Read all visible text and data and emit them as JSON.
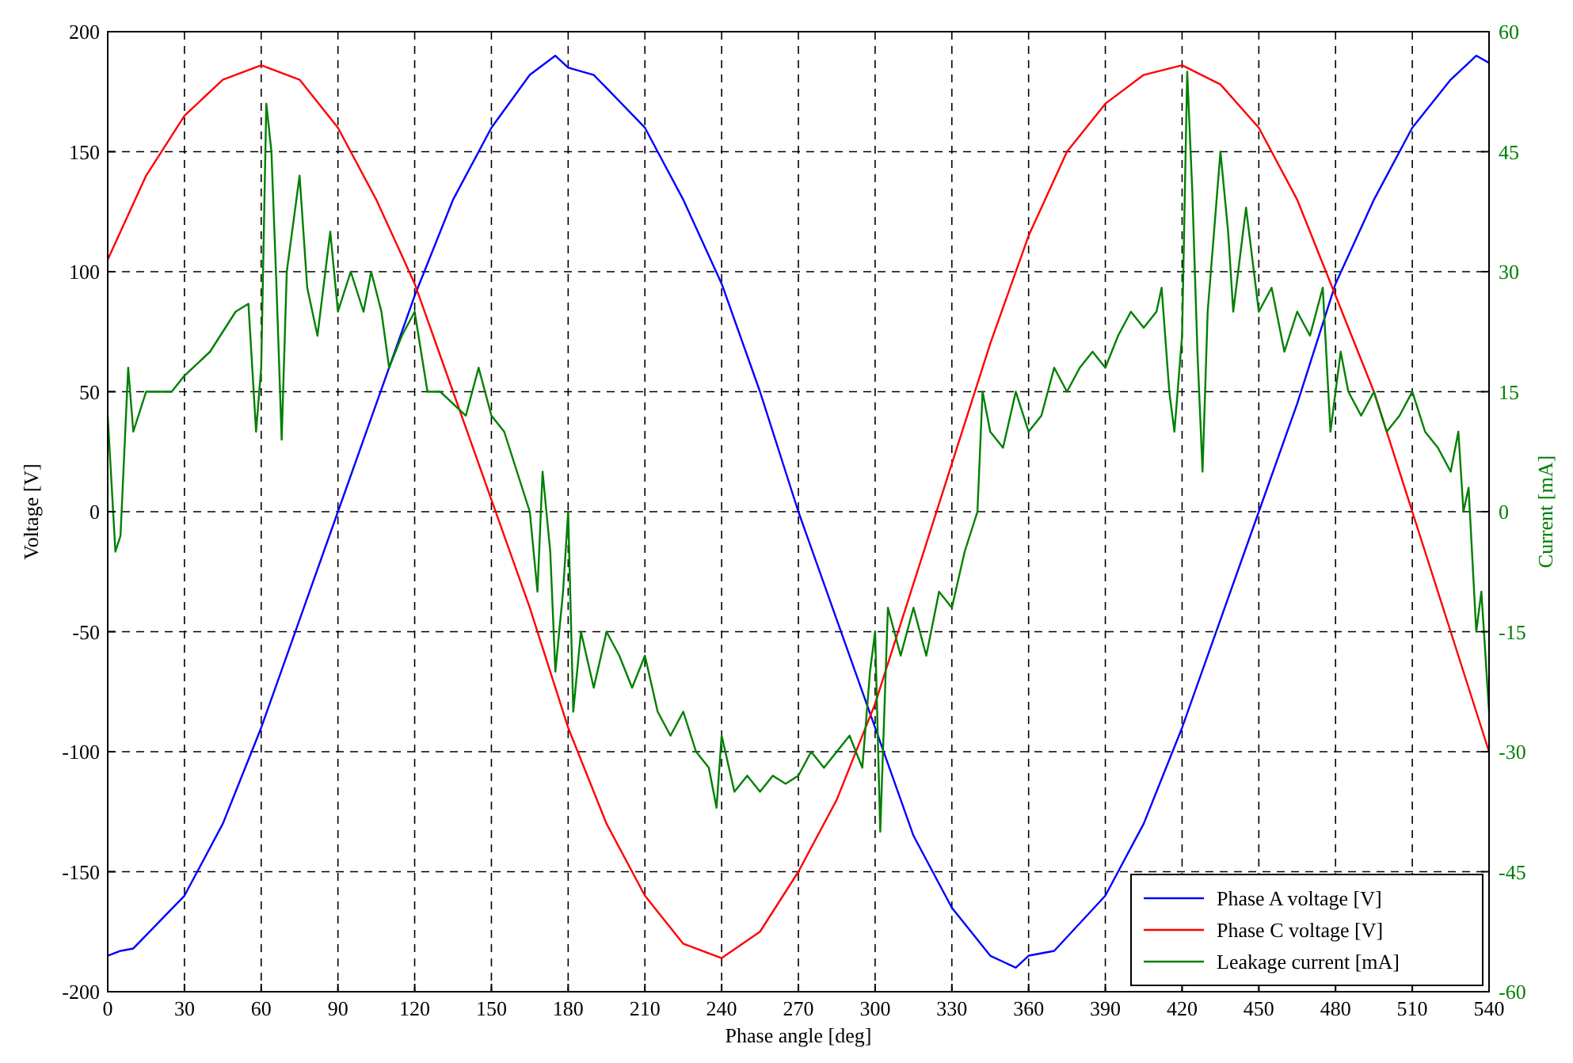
{
  "chart_data": {
    "type": "line",
    "xlabel": "Phase angle [deg]",
    "ylabel": "Voltage [V]",
    "y2label": "Current [mA]",
    "xlim": [
      0,
      540
    ],
    "xticks": [
      0,
      30,
      60,
      90,
      120,
      150,
      180,
      210,
      240,
      270,
      300,
      330,
      360,
      390,
      420,
      450,
      480,
      510,
      540
    ],
    "ylim": [
      -200,
      200
    ],
    "yticks": [
      -200,
      -150,
      -100,
      -50,
      0,
      50,
      100,
      150,
      200
    ],
    "y2lim": [
      -60,
      60
    ],
    "y2ticks": [
      -60,
      -45,
      -30,
      -15,
      0,
      15,
      30,
      45,
      60
    ],
    "grid": true,
    "legend": "bottom right",
    "line_style": "solid",
    "series": [
      {
        "name": "Phase A voltage [V]",
        "color": "#0000ff",
        "x": [
          0,
          5,
          10,
          30,
          45,
          60,
          75,
          90,
          105,
          120,
          135,
          150,
          165,
          175,
          180,
          190,
          210,
          225,
          240,
          255,
          270,
          285,
          300,
          315,
          330,
          345,
          355,
          360,
          370,
          390,
          405,
          420,
          435,
          450,
          465,
          480,
          495,
          510,
          525,
          535,
          540
        ],
        "values": [
          -185,
          -183,
          -182,
          -160,
          -130,
          -90,
          -45,
          0,
          45,
          90,
          130,
          160,
          182,
          190,
          185,
          182,
          160,
          130,
          95,
          50,
          0,
          -45,
          -90,
          -135,
          -165,
          -185,
          -190,
          -185,
          -183,
          -160,
          -130,
          -90,
          -45,
          0,
          45,
          95,
          130,
          160,
          180,
          190,
          187
        ]
      },
      {
        "name": "Phase C voltage [V]",
        "color": "#ff0000",
        "x": [
          0,
          15,
          30,
          45,
          60,
          75,
          90,
          105,
          120,
          135,
          150,
          165,
          180,
          195,
          210,
          225,
          240,
          255,
          270,
          285,
          300,
          315,
          330,
          345,
          360,
          375,
          390,
          405,
          420,
          435,
          450,
          465,
          480,
          495,
          510,
          525,
          540
        ],
        "values": [
          105,
          140,
          165,
          180,
          186,
          180,
          160,
          130,
          95,
          50,
          5,
          -40,
          -90,
          -130,
          -160,
          -180,
          -186,
          -175,
          -150,
          -120,
          -80,
          -30,
          20,
          70,
          115,
          150,
          170,
          182,
          186,
          178,
          160,
          130,
          90,
          50,
          0,
          -50,
          -100
        ]
      },
      {
        "name": "Leakage current [mA]",
        "color": "#008000",
        "axis": "y2",
        "x": [
          0,
          3,
          5,
          8,
          10,
          15,
          25,
          30,
          40,
          50,
          55,
          58,
          60,
          62,
          64,
          66,
          68,
          70,
          75,
          78,
          82,
          87,
          90,
          95,
          100,
          103,
          107,
          110,
          115,
          120,
          125,
          130,
          140,
          145,
          150,
          155,
          160,
          165,
          168,
          170,
          173,
          175,
          178,
          180,
          182,
          185,
          190,
          195,
          200,
          205,
          210,
          215,
          220,
          225,
          230,
          235,
          238,
          240,
          245,
          250,
          255,
          260,
          265,
          270,
          275,
          280,
          285,
          290,
          295,
          298,
          300,
          302,
          305,
          310,
          315,
          320,
          325,
          330,
          335,
          340,
          342,
          345,
          350,
          355,
          360,
          365,
          370,
          375,
          380,
          385,
          390,
          395,
          400,
          405,
          410,
          412,
          415,
          417,
          420,
          422,
          424,
          426,
          428,
          430,
          435,
          438,
          440,
          445,
          450,
          455,
          460,
          465,
          470,
          475,
          478,
          482,
          485,
          490,
          495,
          500,
          505,
          510,
          515,
          520,
          525,
          528,
          530,
          532,
          535,
          537,
          540
        ],
        "values": [
          12,
          -5,
          -3,
          18,
          10,
          15,
          15,
          17,
          20,
          25,
          26,
          10,
          18,
          51,
          45,
          28,
          9,
          30,
          42,
          28,
          22,
          35,
          25,
          30,
          25,
          30,
          25,
          18,
          22,
          25,
          15,
          15,
          12,
          18,
          12,
          10,
          5,
          0,
          -10,
          5,
          -5,
          -20,
          -10,
          0,
          -25,
          -15,
          -22,
          -15,
          -18,
          -22,
          -18,
          -25,
          -28,
          -25,
          -30,
          -32,
          -37,
          -28,
          -35,
          -33,
          -35,
          -33,
          -34,
          -33,
          -30,
          -32,
          -30,
          -28,
          -32,
          -20,
          -15,
          -40,
          -12,
          -18,
          -12,
          -18,
          -10,
          -12,
          -5,
          0,
          15,
          10,
          8,
          15,
          10,
          12,
          18,
          15,
          18,
          20,
          18,
          22,
          25,
          23,
          25,
          28,
          15,
          10,
          22,
          55,
          40,
          20,
          5,
          25,
          45,
          35,
          25,
          38,
          25,
          28,
          20,
          25,
          22,
          28,
          10,
          20,
          15,
          12,
          15,
          10,
          12,
          15,
          10,
          8,
          5,
          10,
          0,
          3,
          -15,
          -10,
          -25
        ]
      }
    ]
  }
}
